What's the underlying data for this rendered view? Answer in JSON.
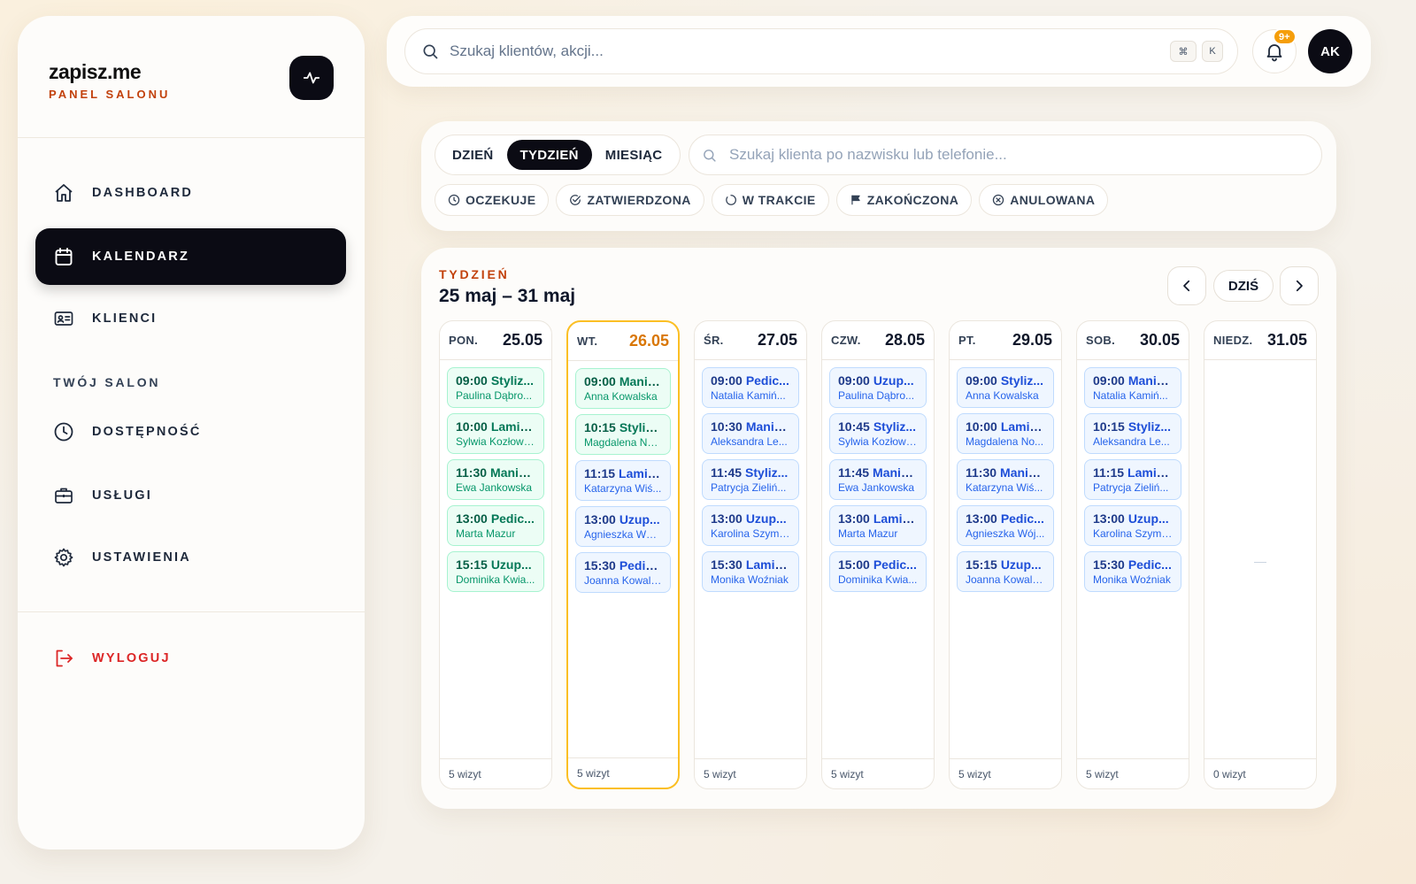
{
  "brand": {
    "name": "zapisz.me",
    "subtitle": "PANEL SALONU"
  },
  "sidebar": {
    "nav": [
      {
        "label": "DASHBOARD",
        "icon": "home-icon"
      },
      {
        "label": "KALENDARZ",
        "icon": "calendar-icon",
        "active": true
      },
      {
        "label": "KLIENCI",
        "icon": "id-card-icon"
      }
    ],
    "section_title": "TWÓJ SALON",
    "salon_nav": [
      {
        "label": "DOSTĘPNOŚĆ",
        "icon": "clock-icon"
      },
      {
        "label": "USŁUGI",
        "icon": "briefcase-icon"
      },
      {
        "label": "USTAWIENIA",
        "icon": "gear-icon"
      }
    ],
    "logout_label": "WYLOGUJ"
  },
  "topbar": {
    "search_placeholder": "Szukaj klientów, akcji...",
    "shortcut": [
      "⌘",
      "K"
    ],
    "notifications_badge": "9+",
    "avatar_initials": "AK"
  },
  "filters": {
    "views": [
      "DZIEŃ",
      "TYDZIEŃ",
      "MIESIĄC"
    ],
    "active_view": "TYDZIEŃ",
    "client_search_placeholder": "Szukaj klienta po nazwisku lub telefonie...",
    "statuses": [
      {
        "label": "OCZEKUJE",
        "icon": "clock-icon"
      },
      {
        "label": "ZATWIERDZONA",
        "icon": "check-circle-icon"
      },
      {
        "label": "W TRAKCIE",
        "icon": "progress-circle-icon"
      },
      {
        "label": "ZAKOŃCZONA",
        "icon": "flag-icon"
      },
      {
        "label": "ANULOWANA",
        "icon": "x-circle-icon"
      }
    ]
  },
  "calendar": {
    "eyebrow": "TYDZIEŃ",
    "range": "25 maj – 31 maj",
    "today_label": "DZIŚ",
    "days": [
      {
        "name": "PON.",
        "date": "25.05",
        "color": "green",
        "count": "5 wizyt",
        "appointments": [
          {
            "time": "09:00",
            "service": "Styliz...",
            "client": "Paulina Dąbro..."
          },
          {
            "time": "10:00",
            "service": "Lamin...",
            "client": "Sylwia Kozłows..."
          },
          {
            "time": "11:30",
            "service": "Manic...",
            "client": "Ewa Jankowska"
          },
          {
            "time": "13:00",
            "service": "Pedic...",
            "client": "Marta Mazur"
          },
          {
            "time": "15:15",
            "service": "Uzup...",
            "client": "Dominika Kwia..."
          }
        ]
      },
      {
        "name": "WT.",
        "date": "26.05",
        "today": true,
        "count": "5 wizyt",
        "appointments": [
          {
            "time": "09:00",
            "service": "Manic...",
            "client": "Anna Kowalska",
            "color": "green"
          },
          {
            "time": "10:15",
            "service": "Styliz...",
            "client": "Magdalena No...",
            "color": "green"
          },
          {
            "time": "11:15",
            "service": "Lamin...",
            "client": "Katarzyna Wiś...",
            "color": "blue"
          },
          {
            "time": "13:00",
            "service": "Uzup...",
            "client": "Agnieszka Wój...",
            "color": "blue"
          },
          {
            "time": "15:30",
            "service": "Pedic...",
            "client": "Joanna Kowalc...",
            "color": "blue"
          }
        ]
      },
      {
        "name": "ŚR.",
        "date": "27.05",
        "color": "blue",
        "count": "5 wizyt",
        "appointments": [
          {
            "time": "09:00",
            "service": "Pedic...",
            "client": "Natalia Kamiń..."
          },
          {
            "time": "10:30",
            "service": "Manic...",
            "client": "Aleksandra Le..."
          },
          {
            "time": "11:45",
            "service": "Styliz...",
            "client": "Patrycja Zieliń..."
          },
          {
            "time": "13:00",
            "service": "Uzup...",
            "client": "Karolina Szyma..."
          },
          {
            "time": "15:30",
            "service": "Lamin...",
            "client": "Monika Woźniak"
          }
        ]
      },
      {
        "name": "CZW.",
        "date": "28.05",
        "color": "blue",
        "count": "5 wizyt",
        "appointments": [
          {
            "time": "09:00",
            "service": "Uzup...",
            "client": "Paulina Dąbro..."
          },
          {
            "time": "10:45",
            "service": "Styliz...",
            "client": "Sylwia Kozłows..."
          },
          {
            "time": "11:45",
            "service": "Manic...",
            "client": "Ewa Jankowska"
          },
          {
            "time": "13:00",
            "service": "Lamin...",
            "client": "Marta Mazur"
          },
          {
            "time": "15:00",
            "service": "Pedic...",
            "client": "Dominika Kwia..."
          }
        ]
      },
      {
        "name": "PT.",
        "date": "29.05",
        "color": "blue",
        "count": "5 wizyt",
        "appointments": [
          {
            "time": "09:00",
            "service": "Styliz...",
            "client": "Anna Kowalska"
          },
          {
            "time": "10:00",
            "service": "Lamin...",
            "client": "Magdalena No..."
          },
          {
            "time": "11:30",
            "service": "Manic...",
            "client": "Katarzyna Wiś..."
          },
          {
            "time": "13:00",
            "service": "Pedic...",
            "client": "Agnieszka Wój..."
          },
          {
            "time": "15:15",
            "service": "Uzup...",
            "client": "Joanna Kowalc..."
          }
        ]
      },
      {
        "name": "SOB.",
        "date": "30.05",
        "color": "blue",
        "count": "5 wizyt",
        "appointments": [
          {
            "time": "09:00",
            "service": "Manic...",
            "client": "Natalia Kamiń..."
          },
          {
            "time": "10:15",
            "service": "Styliz...",
            "client": "Aleksandra Le..."
          },
          {
            "time": "11:15",
            "service": "Lamin...",
            "client": "Patrycja Zieliń..."
          },
          {
            "time": "13:00",
            "service": "Uzup...",
            "client": "Karolina Szyma..."
          },
          {
            "time": "15:30",
            "service": "Pedic...",
            "client": "Monika Woźniak"
          }
        ]
      },
      {
        "name": "NIEDZ.",
        "date": "31.05",
        "count": "0 wizyt",
        "appointments": []
      }
    ]
  },
  "colors": {
    "accent": "#c2410c",
    "today": "#fbbf24",
    "dark": "#0b0b14",
    "danger": "#dc2626"
  }
}
